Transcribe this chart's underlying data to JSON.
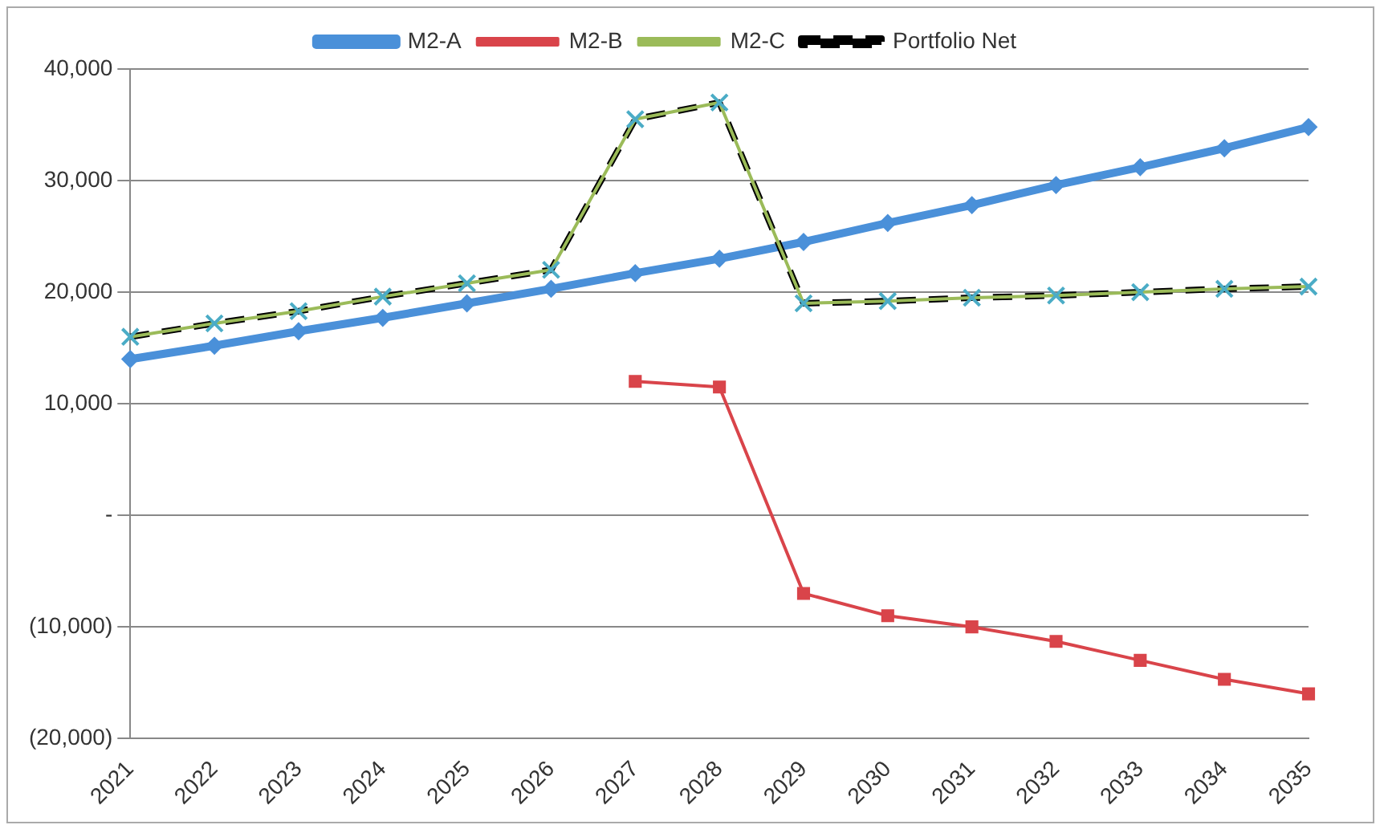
{
  "chart_data": {
    "type": "line",
    "categories": [
      "2021",
      "2022",
      "2023",
      "2024",
      "2025",
      "2026",
      "2027",
      "2028",
      "2029",
      "2030",
      "2031",
      "2032",
      "2033",
      "2034",
      "2035"
    ],
    "series": [
      {
        "name": "M2-A",
        "color": "#4a90d9",
        "marker": "diamond",
        "line_style": "solid",
        "values": [
          14000,
          15200,
          16500,
          17700,
          19000,
          20300,
          21700,
          23000,
          24500,
          26200,
          27800,
          29600,
          31200,
          32900,
          34800
        ]
      },
      {
        "name": "M2-B",
        "color": "#d9444a",
        "marker": "square",
        "line_style": "solid",
        "values": [
          null,
          null,
          null,
          null,
          null,
          null,
          12000,
          11500,
          -7000,
          -9000,
          -10000,
          -11300,
          -13000,
          -14700,
          -16000
        ]
      },
      {
        "name": "M2-C",
        "color": "#9bbb59",
        "marker": "cross",
        "line_style": "solid",
        "values": [
          16000,
          17200,
          18300,
          19600,
          20800,
          22000,
          35500,
          37000,
          19000,
          19200,
          19500,
          19700,
          20000,
          20300,
          20500
        ]
      },
      {
        "name": "Portfolio Net",
        "color": "#000000",
        "marker": "none",
        "line_style": "dashed",
        "values": [
          16000,
          17200,
          18300,
          19600,
          20800,
          22000,
          35500,
          37000,
          19000,
          19200,
          19500,
          19700,
          20000,
          20300,
          20500
        ]
      }
    ],
    "ylim": [
      -20000,
      40000
    ],
    "yticks": [
      {
        "value": -20000,
        "label": "(20,000)"
      },
      {
        "value": -10000,
        "label": "(10,000)"
      },
      {
        "value": 0,
        "label": "-"
      },
      {
        "value": 10000,
        "label": "10,000"
      },
      {
        "value": 20000,
        "label": "20,000"
      },
      {
        "value": 30000,
        "label": "30,000"
      },
      {
        "value": 40000,
        "label": "40,000"
      }
    ],
    "grid": "y",
    "legend": "top"
  }
}
